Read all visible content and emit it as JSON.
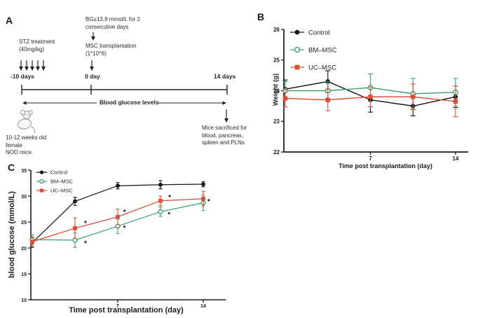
{
  "figure": {
    "panel_a": {
      "label": "A",
      "bg_criteria_line1": "BG≥13.9 mmol/L for 2",
      "bg_criteria_line2": "consecutive days",
      "stz_line1": "STZ treatment",
      "stz_line2": "(40mg/kg)",
      "msc_line1": "MSC transplantation",
      "msc_line2": "(1*10^6)",
      "timeline_start": "-10 days",
      "timeline_mid": "0 day",
      "timeline_end": "14 days",
      "blood_glucose_label": "Blood glucose levels",
      "sacrifice_line1": "Mice sacrificed for",
      "sacrifice_line2": "blood, pancreas,",
      "sacrifice_line3": "spleen and PLNs",
      "mice_line1": "10-12 weeks old",
      "mice_line2": "female",
      "mice_line3": "NOD mice",
      "mouse_icon": "mouse-icon"
    },
    "panel_b": {
      "label": "B"
    },
    "panel_c": {
      "label": "C"
    }
  },
  "colors": {
    "control": "#151515",
    "bm_msc": "#3fa06e",
    "uc_msc": "#dc4f38",
    "axis": "#1a1a1a"
  },
  "chart_data": [
    {
      "id": "weight",
      "type": "line",
      "panel": "B",
      "x": [
        0,
        3.5,
        7,
        10.5,
        14
      ],
      "xticks": [
        {
          "value": 7,
          "label": "7"
        },
        {
          "value": 14,
          "label": "14"
        }
      ],
      "xlabel": "Time post transplantation (day)",
      "ylabel": "Weight (g)",
      "ylim": [
        22,
        26
      ],
      "yticks": [
        "22",
        "23",
        "24",
        "25",
        "26"
      ],
      "grid": false,
      "legend_position": "top-left",
      "series": [
        {
          "name": "Control",
          "marker": "filled-circle",
          "color": "#151515",
          "values": [
            24.05,
            24.3,
            23.7,
            23.5,
            23.8
          ],
          "errors": [
            0.3,
            0.35,
            0.4,
            0.32,
            0.35
          ]
        },
        {
          "name": "BM–MSC",
          "marker": "open-circle",
          "color": "#3fa06e",
          "values": [
            24.0,
            24.0,
            24.1,
            23.9,
            23.95
          ],
          "errors": [
            0.3,
            0.3,
            0.45,
            0.5,
            0.45
          ]
        },
        {
          "name": "UC–MSC",
          "marker": "filled-square",
          "color": "#dc4f38",
          "values": [
            23.75,
            23.7,
            23.8,
            23.8,
            23.65
          ],
          "errors": [
            0.28,
            0.35,
            0.32,
            0.42,
            0.5
          ]
        }
      ],
      "annotations": []
    },
    {
      "id": "glucose",
      "type": "line",
      "panel": "C",
      "x": [
        0,
        3.5,
        7,
        10.5,
        14
      ],
      "xticks": [
        {
          "value": 7,
          "label": "7"
        },
        {
          "value": 14,
          "label": "14"
        }
      ],
      "xlabel": "Time post transplantation (day)",
      "ylabel": "blood glucose (mmol/L)",
      "ylim": [
        10,
        35
      ],
      "yticks": [
        "10",
        "15",
        "20",
        "25",
        "30",
        "35"
      ],
      "grid": false,
      "legend_position": "top-left",
      "series": [
        {
          "name": "Control",
          "marker": "filled-circle",
          "color": "#151515",
          "values": [
            21.0,
            29.0,
            32.0,
            32.2,
            32.3
          ],
          "errors": [
            0.9,
            0.8,
            0.6,
            0.8,
            0.5
          ]
        },
        {
          "name": "BM–MSC",
          "marker": "open-circle",
          "color": "#3fa06e",
          "values": [
            21.6,
            21.5,
            24.2,
            27.0,
            28.7
          ],
          "errors": [
            0.9,
            1.4,
            1.4,
            0.9,
            1.5
          ]
        },
        {
          "name": "UC–MSC",
          "marker": "filled-square",
          "color": "#dc4f38",
          "values": [
            21.2,
            23.8,
            26.0,
            29.1,
            29.5
          ],
          "errors": [
            0.9,
            2.0,
            1.5,
            0.9,
            1.4
          ]
        }
      ],
      "annotations": [
        {
          "x": 4.35,
          "y": 24.7,
          "text": "*"
        },
        {
          "x": 4.35,
          "y": 20.9,
          "text": "*"
        },
        {
          "x": 7.55,
          "y": 26.9,
          "text": "*"
        },
        {
          "x": 7.55,
          "y": 23.85,
          "text": "*"
        },
        {
          "x": 11.25,
          "y": 29.7,
          "text": "*"
        },
        {
          "x": 11.2,
          "y": 26.4,
          "text": "*"
        },
        {
          "x": 14.45,
          "y": 28.9,
          "text": "*"
        }
      ]
    }
  ]
}
